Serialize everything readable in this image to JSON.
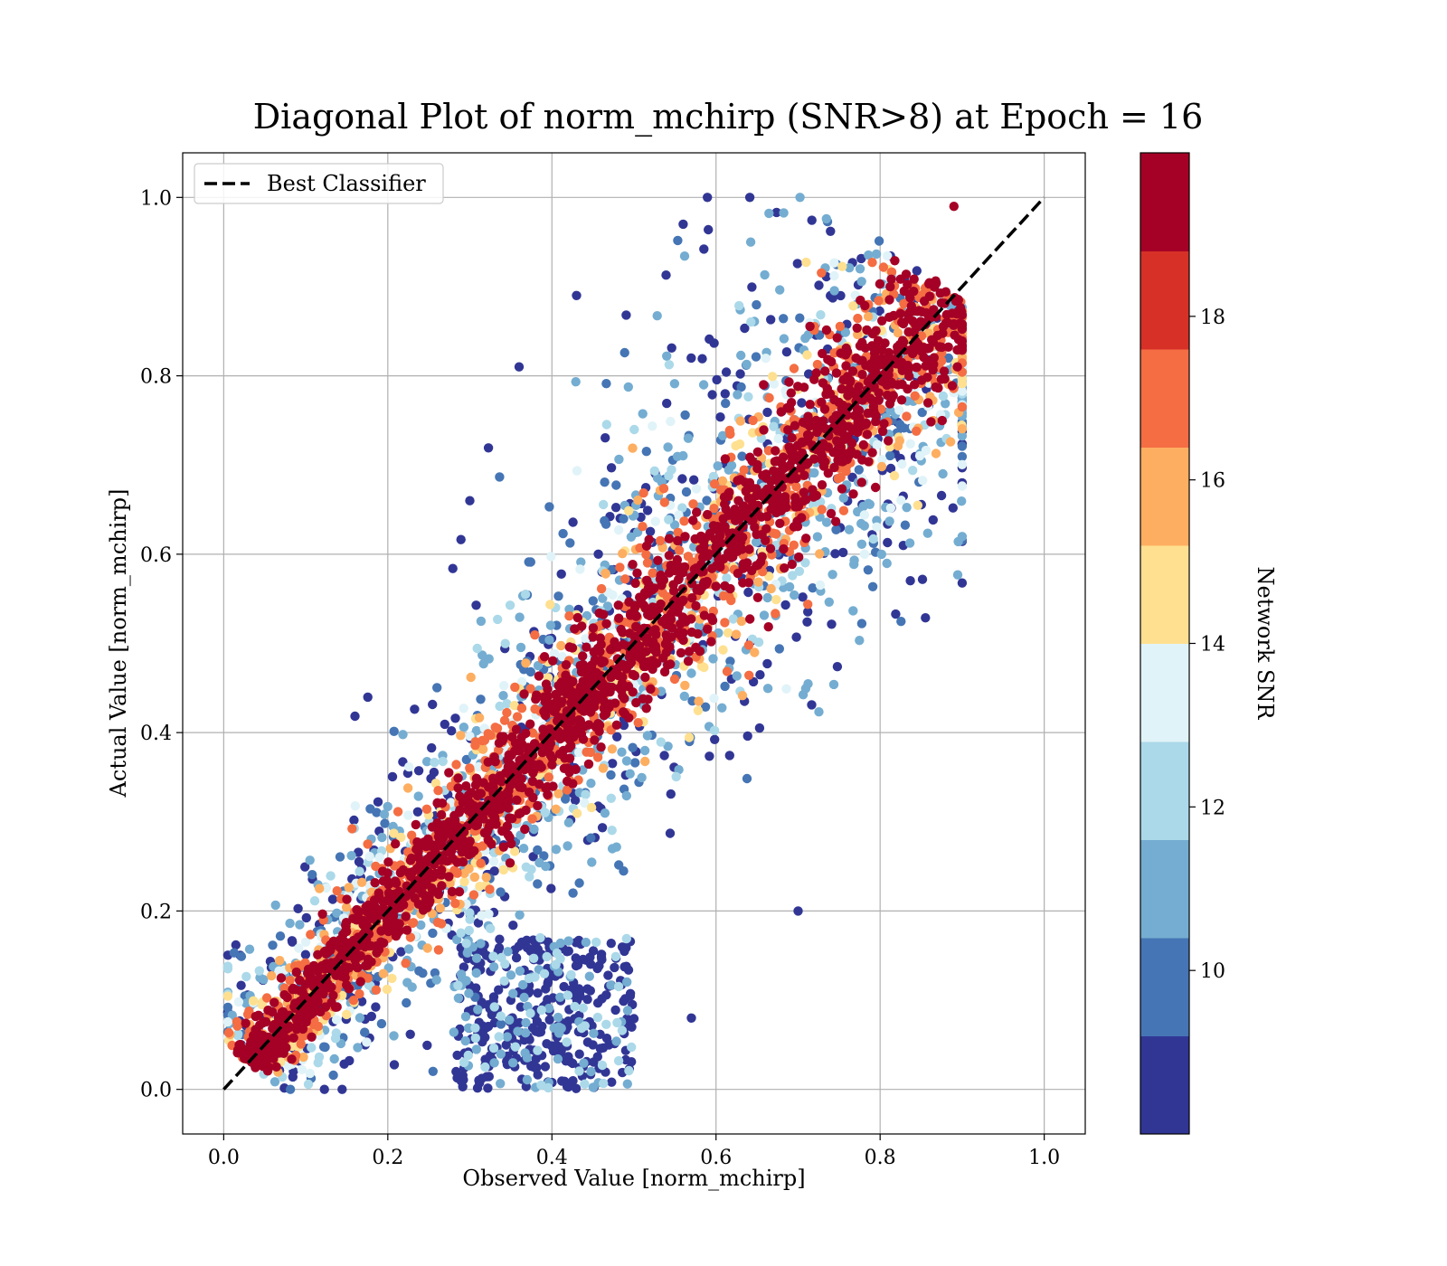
{
  "chart_data": {
    "type": "scatter",
    "title": "Diagonal Plot of norm_mchirp (SNR>8) at Epoch = 16",
    "xlabel": "Observed Value [norm_mchirp]",
    "ylabel": "Actual Value [norm_mchirp]",
    "xlim": [
      -0.05,
      1.05
    ],
    "ylim": [
      -0.05,
      1.05
    ],
    "x_ticks": [
      "0.0",
      "0.2",
      "0.4",
      "0.6",
      "0.8",
      "1.0"
    ],
    "y_ticks": [
      "0.0",
      "0.2",
      "0.4",
      "0.6",
      "0.8",
      "1.0"
    ],
    "grid": true,
    "legend": {
      "position": "top-left",
      "entries": [
        {
          "label": "Best Classifier",
          "style": "dashed",
          "color": "#000000"
        }
      ]
    },
    "reference_line": {
      "label": "Best Classifier",
      "x": [
        0.0,
        1.0
      ],
      "y": [
        0.0,
        1.0
      ]
    },
    "colorbar": {
      "label": "Network SNR",
      "range": [
        8,
        20
      ],
      "ticks": [
        "10",
        "12",
        "14",
        "16",
        "18"
      ],
      "colors": [
        "#313695",
        "#4575b4",
        "#74add1",
        "#abd9e9",
        "#e0f3f8",
        "#fee090",
        "#fdae61",
        "#f46d43",
        "#d73027",
        "#a50026"
      ]
    },
    "point_description": "dense scatter of several thousand points along the diagonal; high-SNR (dark red) points cluster tightly on the diagonal, low-SNR (blue) points scatter farther away, with a low-SNR cluster near observed 0.3-0.5, actual 0.0-0.15",
    "sample_points": [
      {
        "x": 0.35,
        "y": 0.1,
        "snr": 9
      },
      {
        "x": 0.45,
        "y": 0.05,
        "snr": 9
      },
      {
        "x": 0.3,
        "y": 0.66,
        "snr": 9
      },
      {
        "x": 0.36,
        "y": 0.81,
        "snr": 9
      },
      {
        "x": 0.43,
        "y": 0.89,
        "snr": 9
      },
      {
        "x": 0.56,
        "y": 0.97,
        "snr": 9
      },
      {
        "x": 0.7,
        "y": 0.2,
        "snr": 9
      },
      {
        "x": 0.57,
        "y": 0.08,
        "snr": 9
      },
      {
        "x": 0.5,
        "y": 0.5,
        "snr": 19
      },
      {
        "x": 0.8,
        "y": 0.8,
        "snr": 19
      },
      {
        "x": 0.2,
        "y": 0.2,
        "snr": 19
      },
      {
        "x": 0.89,
        "y": 0.99,
        "snr": 19
      }
    ]
  }
}
